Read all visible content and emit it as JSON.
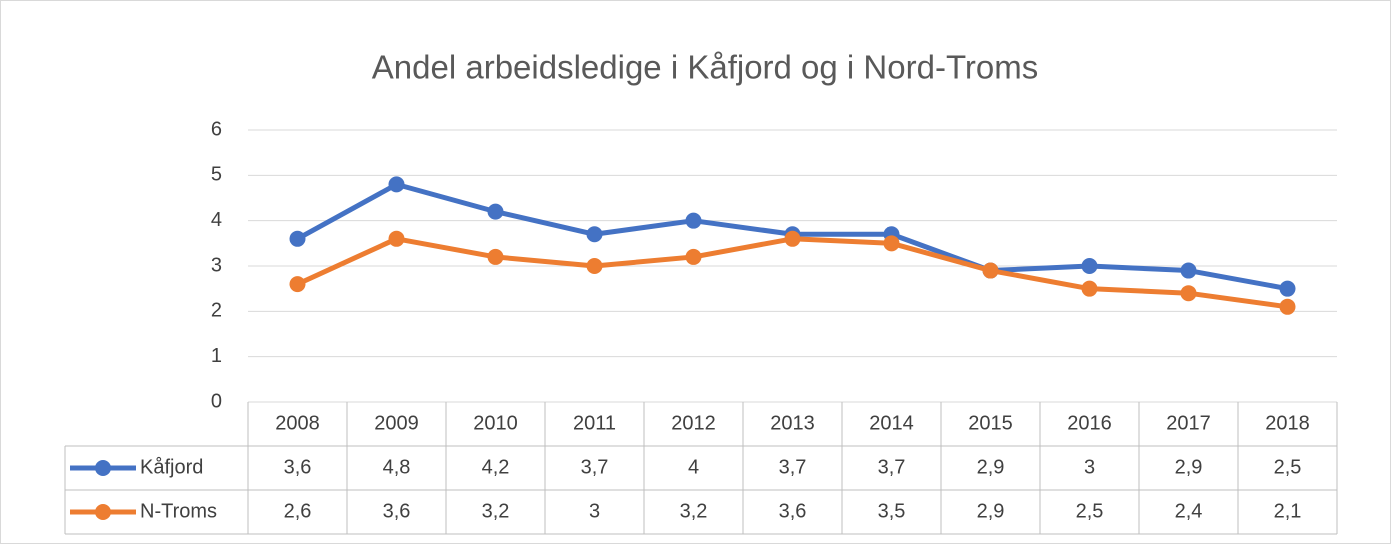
{
  "chart_data": {
    "type": "line",
    "title": "Andel arbeidsledige i Kåfjord og i Nord-Troms",
    "categories": [
      "2008",
      "2009",
      "2010",
      "2011",
      "2012",
      "2013",
      "2014",
      "2015",
      "2016",
      "2017",
      "2018"
    ],
    "series": [
      {
        "name": "Kåfjord",
        "color": "#4472c4",
        "values": [
          3.6,
          4.8,
          4.2,
          3.7,
          4,
          3.7,
          3.7,
          2.9,
          3,
          2.9,
          2.5
        ],
        "value_labels": [
          "3,6",
          "4,8",
          "4,2",
          "3,7",
          "4",
          "3,7",
          "3,7",
          "2,9",
          "3",
          "2,9",
          "2,5"
        ]
      },
      {
        "name": "N-Troms",
        "color": "#ed7d31",
        "values": [
          2.6,
          3.6,
          3.2,
          3,
          3.2,
          3.6,
          3.5,
          2.9,
          2.5,
          2.4,
          2.1
        ],
        "value_labels": [
          "2,6",
          "3,6",
          "3,2",
          "3",
          "3,2",
          "3,6",
          "3,5",
          "2,9",
          "2,5",
          "2,4",
          "2,1"
        ]
      }
    ],
    "ylim": [
      0,
      6
    ],
    "yticks": [
      0,
      1,
      2,
      3,
      4,
      5,
      6
    ],
    "grid": true,
    "data_table": true
  }
}
